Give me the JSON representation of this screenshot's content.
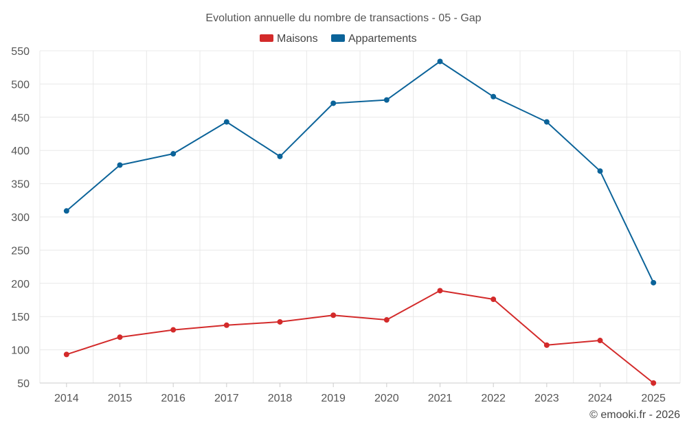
{
  "chart_data": {
    "type": "line",
    "title": "Evolution annuelle du nombre de transactions - 05 - Gap",
    "categories": [
      "2014",
      "2015",
      "2016",
      "2017",
      "2018",
      "2019",
      "2020",
      "2021",
      "2022",
      "2023",
      "2024",
      "2025"
    ],
    "series": [
      {
        "name": "Maisons",
        "color": "#d32a2a",
        "values": [
          93,
          119,
          130,
          137,
          142,
          152,
          145,
          189,
          176,
          107,
          114,
          50
        ]
      },
      {
        "name": "Appartements",
        "color": "#0b6399",
        "values": [
          309,
          378,
          395,
          443,
          391,
          471,
          476,
          534,
          481,
          443,
          369,
          201
        ]
      }
    ],
    "ylim": [
      50,
      550
    ],
    "yticks": [
      50,
      100,
      150,
      200,
      250,
      300,
      350,
      400,
      450,
      500,
      550
    ],
    "xlabel": "",
    "ylabel": "",
    "grid": true,
    "legend": "top-center"
  },
  "credit": "© emooki.fr - 2026"
}
